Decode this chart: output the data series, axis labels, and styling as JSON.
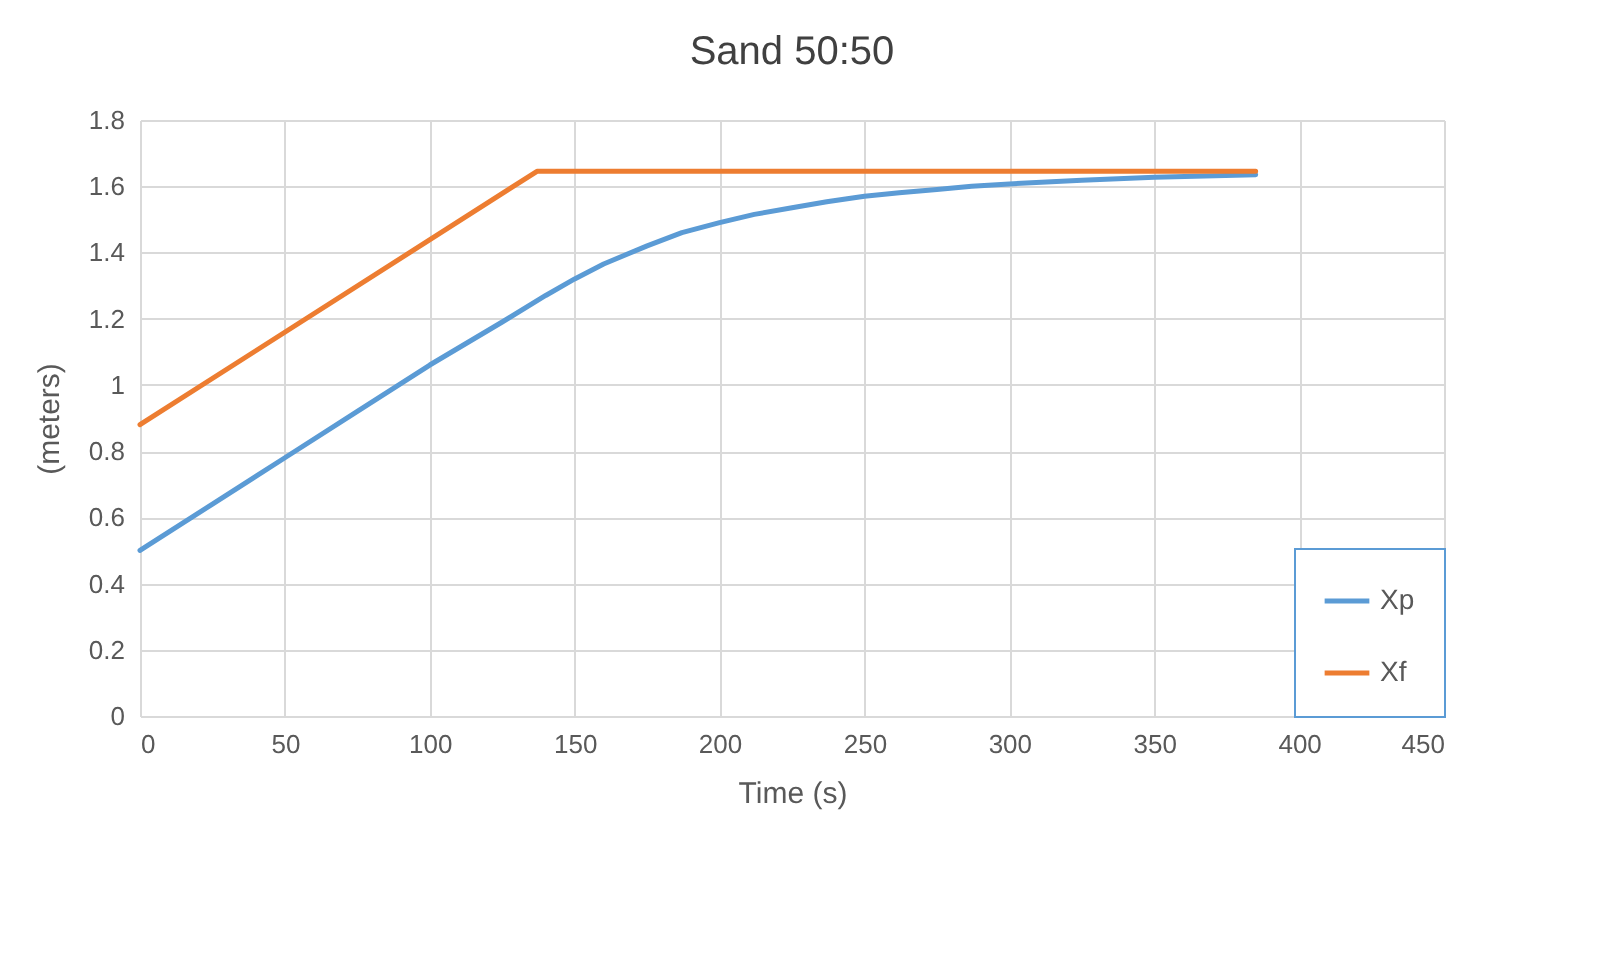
{
  "chart_data": {
    "type": "line",
    "title": "Sand 50:50",
    "xlabel": "Time (s)",
    "ylabel": "(meters)",
    "series": [
      {
        "name": "Xp",
        "color": "#5b9bd5",
        "x": [
          0,
          25,
          50,
          75,
          100,
          125,
          140,
          150,
          160,
          175,
          187,
          200,
          212,
          225,
          237,
          250,
          262,
          275,
          287,
          300,
          325,
          350,
          385
        ],
        "values": [
          0.5,
          0.64,
          0.78,
          0.92,
          1.06,
          1.19,
          1.27,
          1.32,
          1.365,
          1.42,
          1.46,
          1.49,
          1.515,
          1.535,
          1.553,
          1.57,
          1.58,
          1.59,
          1.6,
          1.607,
          1.618,
          1.627,
          1.635
        ]
      },
      {
        "name": "Xf",
        "color": "#ed7d31",
        "x": [
          0,
          137,
          385
        ],
        "values": [
          0.88,
          1.645,
          1.645
        ]
      }
    ],
    "xlim": [
      0,
      450
    ],
    "xticks": [
      0,
      50,
      100,
      150,
      200,
      250,
      300,
      350,
      400,
      450
    ],
    "ylim": [
      0,
      1.8
    ],
    "yticks": [
      0,
      0.2,
      0.4,
      0.6,
      0.8,
      1,
      1.2,
      1.4,
      1.6,
      1.8
    ],
    "grid": true,
    "legend": "bottom right",
    "line_style": "solid",
    "marker": "none"
  }
}
